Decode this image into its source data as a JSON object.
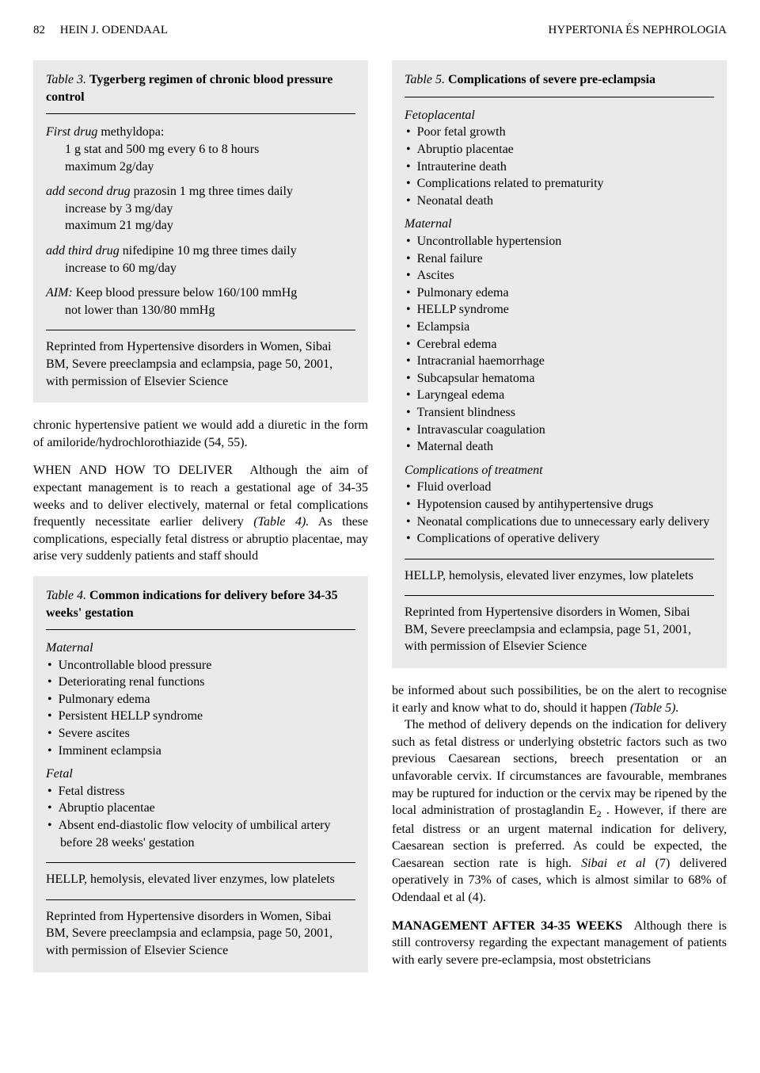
{
  "colors": {
    "box_bg": "#e9eaeb",
    "text": "#000000",
    "page_bg": "#ffffff",
    "rule": "#000000"
  },
  "header": {
    "page_number": "82",
    "author": "HEIN J. ODENDAAL",
    "journal": "HYPERTONIA ÉS NEPHROLOGIA"
  },
  "table3": {
    "label": "Table 3.",
    "caption": "Tygerberg regimen of chronic blood pressure control",
    "first_drug_head": "First drug",
    "first_drug_name": " methyldopa:",
    "first_drug_lines": [
      "1 g stat and 500 mg every 6 to 8 hours",
      "maximum 2g/day"
    ],
    "second_drug_head": "add second drug",
    "second_drug_name": " prazosin 1 mg three times daily",
    "second_drug_lines": [
      "increase by 3 mg/day",
      "maximum 21 mg/day"
    ],
    "third_drug_head": "add third drug",
    "third_drug_name": " nifedipine 10 mg three times daily",
    "third_drug_lines": [
      "increase to 60 mg/day"
    ],
    "aim_head": "AIM:",
    "aim_text": " Keep blood pressure below 160/100 mmHg",
    "aim_line2": "not lower than 130/80 mmHg",
    "attribution": "Reprinted from Hypertensive disorders in Women, Sibai BM, Severe preeclampsia and eclampsia, page 50, 2001, with permission of Elsevier Science"
  },
  "left_body": {
    "para1": "chronic hypertensive patient we would add a diuretic in the form of amiloride/hydrochlorothiazide (54, 55).",
    "runin2": "WHEN AND HOW TO DELIVER",
    "para2": "Although the aim of expectant management is to reach a gestational age of 34-35 weeks and to deliver electively, maternal or fetal complications frequently necessitate earlier delivery ",
    "para2_ref": "(Table 4).",
    "para2_tail": " As these complications, especially fetal distress or abruptio placentae, may arise very suddenly patients and staff should"
  },
  "table4": {
    "label": "Table 4.",
    "caption": "Common indications for delivery before 34-35 weeks' gestation",
    "maternal_head": "Maternal",
    "maternal_items": [
      "Uncontrollable blood pressure",
      "Deteriorating renal functions",
      "Pulmonary edema",
      "Persistent HELLP syndrome",
      "Severe ascites",
      "Imminent eclampsia"
    ],
    "fetal_head": "Fetal",
    "fetal_items": [
      "Fetal distress",
      "Abruptio placentae",
      "Absent end-diastolic flow velocity of umbilical artery before 28 weeks' gestation"
    ],
    "footer": "HELLP, hemolysis, elevated liver enzymes, low platelets",
    "attribution": "Reprinted from Hypertensive disorders in Women, Sibai BM, Severe preeclampsia and eclampsia, page 50, 2001, with permission of Elsevier Science"
  },
  "table5": {
    "label": "Table 5.",
    "caption": "Complications of severe pre-eclampsia",
    "feto_head": "Fetoplacental",
    "feto_items": [
      "Poor fetal growth",
      "Abruptio placentae",
      "Intrauterine death",
      "Complications related to prematurity",
      "Neonatal death"
    ],
    "maternal_head": "Maternal",
    "maternal_items": [
      "Uncontrollable hypertension",
      "Renal failure",
      "Ascites",
      "Pulmonary edema",
      "HELLP syndrome",
      "Eclampsia",
      "Cerebral edema",
      "Intracranial haemorrhage",
      "Subcapsular hematoma",
      "Laryngeal edema",
      "Transient blindness",
      "Intravascular coagulation",
      "Maternal death"
    ],
    "treat_head": "Complications of treatment",
    "treat_items": [
      "Fluid overload",
      "Hypotension caused by antihypertensive drugs",
      "Neonatal complications due to unnecessary early delivery",
      "Complications of operative delivery"
    ],
    "footer": "HELLP, hemolysis, elevated liver enzymes, low platelets",
    "attribution": "Reprinted from Hypertensive disorders in Women, Sibai BM, Severe preeclampsia and eclampsia, page 51, 2001, with permission of Elsevier Science"
  },
  "right_body": {
    "para1a": "be informed about such possibilities, be on the alert to recognise it early and know what to do, should it happen ",
    "para1_ref": "(Table 5).",
    "para2a": "The method of delivery depends on the indication for delivery such as fetal distress or underlying obstetric factors such as two previous Caesarean sections, breech presentation or an unfavorable cervix. If circumstances are favourable, membranes may be ruptured for induction or the cervix may be ripened by the local administration of prostaglandin E",
    "para2_sub": "2",
    "para2b": " . However, if there are fetal distress or an urgent maternal indication for delivery, Caesarean section is preferred. As could be expected, the Caesarean section rate is high. ",
    "para2_it1": "Sibai et al",
    "para2c": " (7) delivered operatively in 73% of cases, which is almost similar to 68% of Odendaal et al (4).",
    "runin3": "MANAGEMENT AFTER 34-35 WEEKS",
    "para3": "Although there is still controversy regarding the expectant management of patients with early severe pre-eclampsia, most obstetricians"
  }
}
